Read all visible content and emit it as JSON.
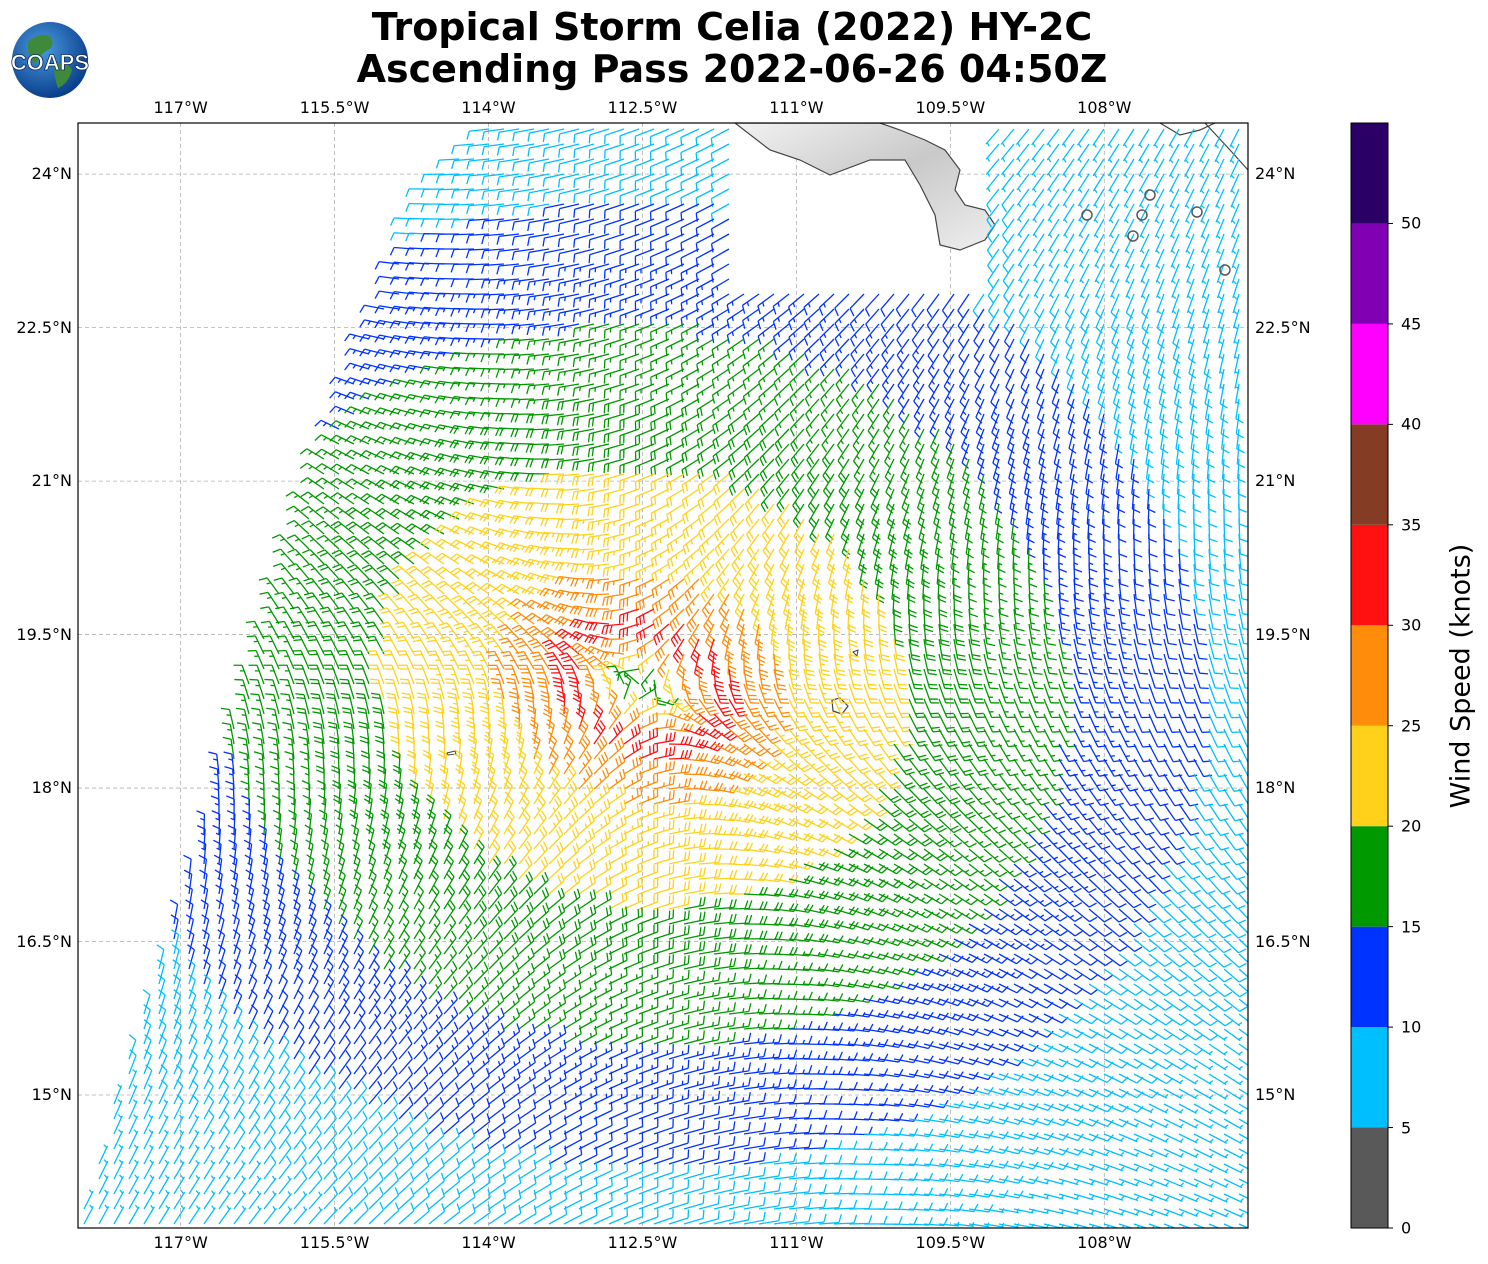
{
  "header": {
    "title_line1": "Tropical Storm Celia (2022) HY-2C",
    "title_line2": "Ascending Pass 2022-06-26 04:50Z",
    "logo_text": "COAPS"
  },
  "map": {
    "lon_range": [
      -118.0,
      -106.6
    ],
    "lat_range": [
      13.7,
      24.5
    ],
    "lon_ticks": [
      {
        "value": -117.0,
        "label": "117°W"
      },
      {
        "value": -115.5,
        "label": "115.5°W"
      },
      {
        "value": -114.0,
        "label": "114°W"
      },
      {
        "value": -112.5,
        "label": "112.5°W"
      },
      {
        "value": -111.0,
        "label": "111°W"
      },
      {
        "value": -109.5,
        "label": "109.5°W"
      },
      {
        "value": -108.0,
        "label": "108°W"
      }
    ],
    "lat_ticks": [
      {
        "value": 24.0,
        "label": "24°N"
      },
      {
        "value": 22.5,
        "label": "22.5°N"
      },
      {
        "value": 21.0,
        "label": "21°N"
      },
      {
        "value": 19.5,
        "label": "19.5°N"
      },
      {
        "value": 18.0,
        "label": "18°N"
      },
      {
        "value": 16.5,
        "label": "16.5°N"
      },
      {
        "value": 15.0,
        "label": "15°N"
      }
    ],
    "storm_center": {
      "lon": -112.5,
      "lat": 19.0
    },
    "grid": true,
    "land_color": "#e6e6e6",
    "coast_color": "#444444"
  },
  "colorbar": {
    "title": "Wind Speed (knots)",
    "bins": [
      {
        "min": 0,
        "max": 5,
        "color": "#595959"
      },
      {
        "min": 5,
        "max": 10,
        "color": "#00bfff"
      },
      {
        "min": 10,
        "max": 15,
        "color": "#0033ff"
      },
      {
        "min": 15,
        "max": 20,
        "color": "#009900"
      },
      {
        "min": 20,
        "max": 25,
        "color": "#ffd11a"
      },
      {
        "min": 25,
        "max": 30,
        "color": "#ff8c0a"
      },
      {
        "min": 30,
        "max": 35,
        "color": "#ff1111"
      },
      {
        "min": 35,
        "max": 40,
        "color": "#843c24"
      },
      {
        "min": 40,
        "max": 45,
        "color": "#ff00ff"
      },
      {
        "min": 45,
        "max": 50,
        "color": "#8000b3"
      },
      {
        "min": 50,
        "max": 55,
        "color": "#2b0066"
      }
    ],
    "tick_labels": [
      "0",
      "5",
      "10",
      "15",
      "20",
      "25",
      "30",
      "35",
      "40",
      "45",
      "50"
    ]
  }
}
